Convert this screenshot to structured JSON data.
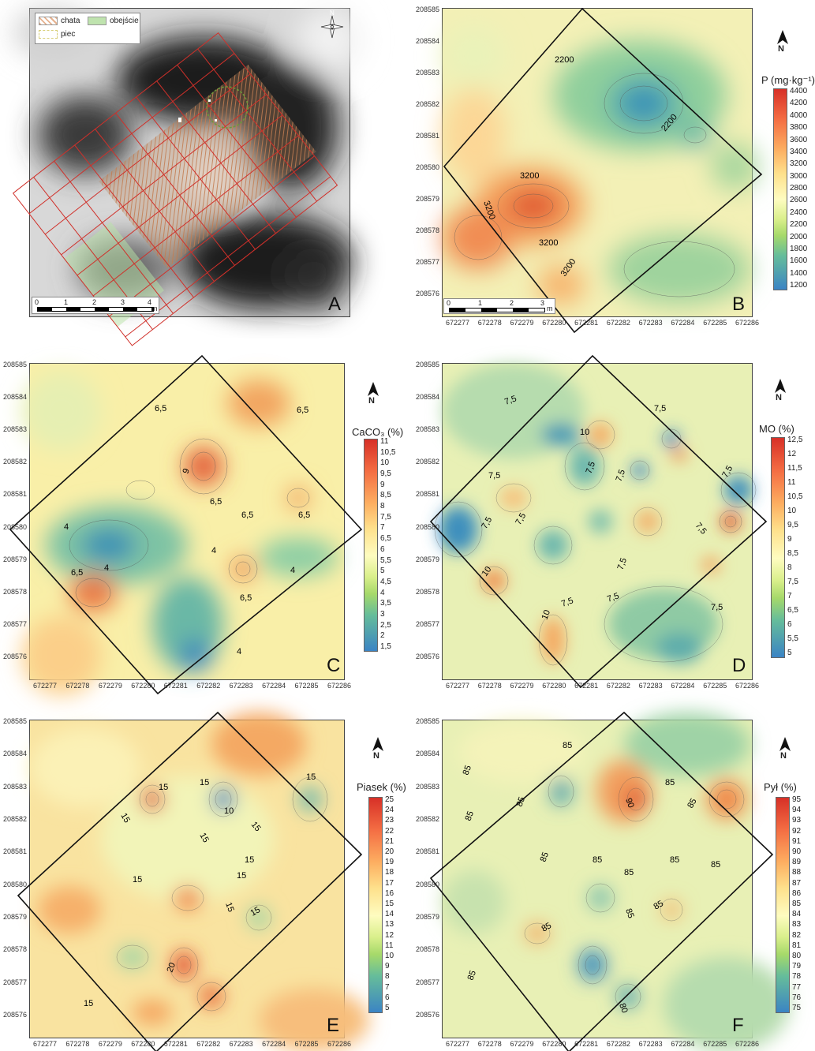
{
  "y_axis_ticks": [
    "208585",
    "208584",
    "208583",
    "208582",
    "208581",
    "208580",
    "208579",
    "208578",
    "208577",
    "208576"
  ],
  "x_axis_ticks": [
    "672277",
    "672278",
    "672279",
    "672280",
    "672281",
    "672282",
    "672283",
    "672284",
    "672285",
    "672286"
  ],
  "panel_a": {
    "letter": "A",
    "legend": {
      "chata": "chata",
      "obejscie": "obejście",
      "piec": "piec"
    },
    "north_symbol": "N",
    "scale": {
      "labels": [
        "0",
        "1",
        "2",
        "3",
        "4"
      ],
      "unit": "m"
    }
  },
  "panel_b": {
    "letter": "B",
    "legend_title": "P (mg·kg⁻¹)",
    "legend_labels": [
      "4400",
      "4200",
      "4000",
      "3800",
      "3600",
      "3400",
      "3200",
      "3000",
      "2800",
      "2600",
      "2400",
      "2200",
      "2000",
      "1800",
      "1600",
      "1400",
      "1200"
    ],
    "contour_labels": [
      "2200",
      "2200",
      "3200",
      "3200",
      "3200",
      "3200"
    ],
    "scale": {
      "labels": [
        "0",
        "1",
        "2",
        "3"
      ],
      "unit": "m"
    }
  },
  "panel_c": {
    "letter": "C",
    "legend_title": "CaCO₃ (%)",
    "legend_labels": [
      "11",
      "10,5",
      "10",
      "9,5",
      "9",
      "8,5",
      "8",
      "7,5",
      "7",
      "6,5",
      "6",
      "5,5",
      "5",
      "4,5",
      "4",
      "3,5",
      "3",
      "2,5",
      "2",
      "1,5"
    ],
    "contour_labels": [
      "6,5",
      "6,5",
      "9",
      "6,5",
      "6,5",
      "6,5",
      "4",
      "4",
      "4",
      "4",
      "6,5",
      "6,5",
      "4"
    ]
  },
  "panel_d": {
    "letter": "D",
    "legend_title": "MO (%)",
    "legend_labels": [
      "12,5",
      "12",
      "11,5",
      "11",
      "10,5",
      "10",
      "9,5",
      "9",
      "8,5",
      "8",
      "7,5",
      "7",
      "6,5",
      "6",
      "5,5",
      "5"
    ],
    "contour_labels": [
      "7,5",
      "7,5",
      "10",
      "7,5",
      "7,5",
      "7,5",
      "7,5",
      "7,5",
      "7,5",
      "7,5",
      "10",
      "7,5",
      "10",
      "7,5",
      "7,5",
      "7,5"
    ]
  },
  "panel_e": {
    "letter": "E",
    "legend_title": "Piasek (%)",
    "legend_labels": [
      "25",
      "24",
      "23",
      "22",
      "21",
      "20",
      "19",
      "18",
      "17",
      "16",
      "15",
      "14",
      "13",
      "12",
      "11",
      "10",
      "9",
      "8",
      "7",
      "6",
      "5"
    ],
    "contour_labels": [
      "15",
      "15",
      "15",
      "10",
      "15",
      "15",
      "15",
      "15",
      "15",
      "15",
      "15",
      "15",
      "20",
      "15"
    ]
  },
  "panel_f": {
    "letter": "F",
    "legend_title": "Pył (%)",
    "legend_labels": [
      "95",
      "94",
      "93",
      "92",
      "91",
      "90",
      "89",
      "88",
      "87",
      "86",
      "85",
      "84",
      "83",
      "82",
      "81",
      "80",
      "79",
      "78",
      "77",
      "76",
      "75"
    ],
    "contour_labels": [
      "85",
      "85",
      "85",
      "85",
      "85",
      "85",
      "90",
      "85",
      "85",
      "85",
      "85",
      "85",
      "85",
      "85",
      "85",
      "80",
      "85"
    ]
  },
  "colors": {
    "high": "#d73027",
    "mid": "#fefcc0",
    "low": "#3b84c4",
    "frame": "#111111",
    "grid": "#d0302a"
  }
}
